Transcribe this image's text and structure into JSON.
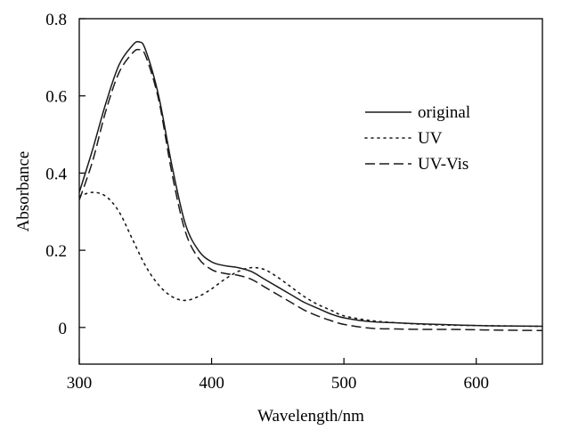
{
  "chart_data": {
    "type": "line",
    "title": "",
    "xlabel": "Wavelength/nm",
    "ylabel": "Absorbance",
    "xlim": [
      300,
      650
    ],
    "ylim": [
      -0.095,
      0.8
    ],
    "x_ticks": [
      300,
      400,
      500,
      600
    ],
    "y_ticks": [
      0,
      0.2,
      0.4,
      0.6,
      0.8
    ],
    "x_tick_labels": [
      "300",
      "400",
      "500",
      "600"
    ],
    "y_tick_labels": [
      "0",
      "0.2",
      "0.4",
      "0.6",
      "0.8"
    ],
    "grid": false,
    "legend_position": "right",
    "series": [
      {
        "name": "original",
        "style": "solid",
        "x": [
          300,
          310,
          320,
          330,
          340,
          345,
          350,
          360,
          370,
          380,
          390,
          400,
          410,
          420,
          430,
          440,
          450,
          460,
          470,
          480,
          490,
          500,
          520,
          540,
          560,
          580,
          600,
          620,
          650
        ],
        "y": [
          0.35,
          0.46,
          0.58,
          0.68,
          0.73,
          0.74,
          0.72,
          0.6,
          0.42,
          0.27,
          0.2,
          0.17,
          0.16,
          0.155,
          0.145,
          0.125,
          0.105,
          0.085,
          0.065,
          0.05,
          0.035,
          0.025,
          0.015,
          0.012,
          0.009,
          0.007,
          0.005,
          0.004,
          0.003
        ]
      },
      {
        "name": "UV",
        "style": "dotted",
        "x": [
          300,
          310,
          320,
          330,
          340,
          350,
          360,
          370,
          380,
          390,
          400,
          410,
          420,
          430,
          440,
          450,
          460,
          470,
          480,
          490,
          500,
          520,
          540,
          560,
          580,
          600,
          620,
          650
        ],
        "y": [
          0.34,
          0.35,
          0.34,
          0.3,
          0.23,
          0.16,
          0.11,
          0.08,
          0.07,
          0.08,
          0.1,
          0.125,
          0.145,
          0.155,
          0.15,
          0.13,
          0.105,
          0.08,
          0.06,
          0.045,
          0.03,
          0.018,
          0.012,
          0.008,
          0.006,
          0.005,
          0.004,
          0.003
        ]
      },
      {
        "name": "UV-Vis",
        "style": "dashed",
        "x": [
          300,
          310,
          320,
          330,
          340,
          345,
          350,
          360,
          370,
          380,
          390,
          400,
          410,
          420,
          430,
          440,
          450,
          460,
          470,
          480,
          490,
          500,
          520,
          540,
          560,
          580,
          600,
          620,
          650
        ],
        "y": [
          0.33,
          0.43,
          0.56,
          0.66,
          0.71,
          0.72,
          0.705,
          0.59,
          0.4,
          0.25,
          0.18,
          0.15,
          0.14,
          0.135,
          0.125,
          0.105,
          0.085,
          0.065,
          0.045,
          0.03,
          0.018,
          0.008,
          -0.002,
          -0.004,
          -0.005,
          -0.005,
          -0.006,
          -0.007,
          -0.008
        ]
      }
    ]
  }
}
